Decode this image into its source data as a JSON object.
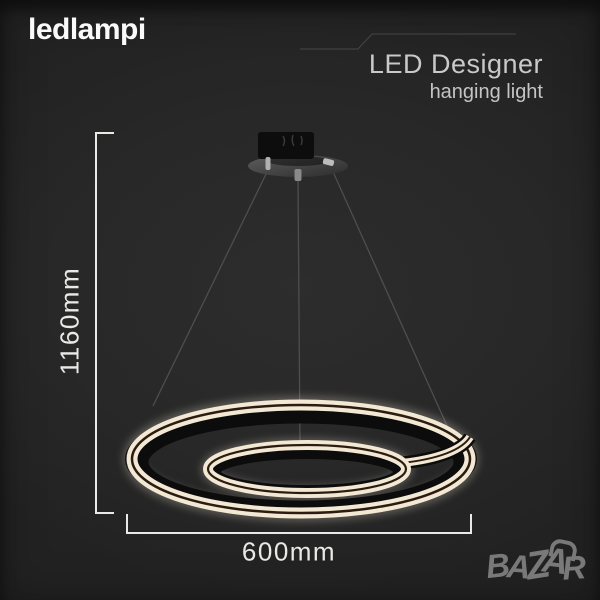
{
  "header": {
    "brand": "ledlampi",
    "product_line_1": "LED Designer",
    "product_line_2": "hanging light"
  },
  "annotations": {
    "height": "1160mm",
    "width": "600mm"
  },
  "watermark": {
    "text": "BAZAR"
  },
  "icons": {
    "watermark_handle": "shopping-bag-handle-icon"
  },
  "colors": {
    "background": "#272727",
    "glow": "#f2e8d3",
    "glow_dark": "#2a1c10",
    "ring_black": "#0c0c0c",
    "dimension_line": "#e9e9e6",
    "brand_text": "#fafafa",
    "title_text": "#c9c9c9",
    "watermark_gray": "#818181",
    "cable": "#4e4e4e"
  }
}
